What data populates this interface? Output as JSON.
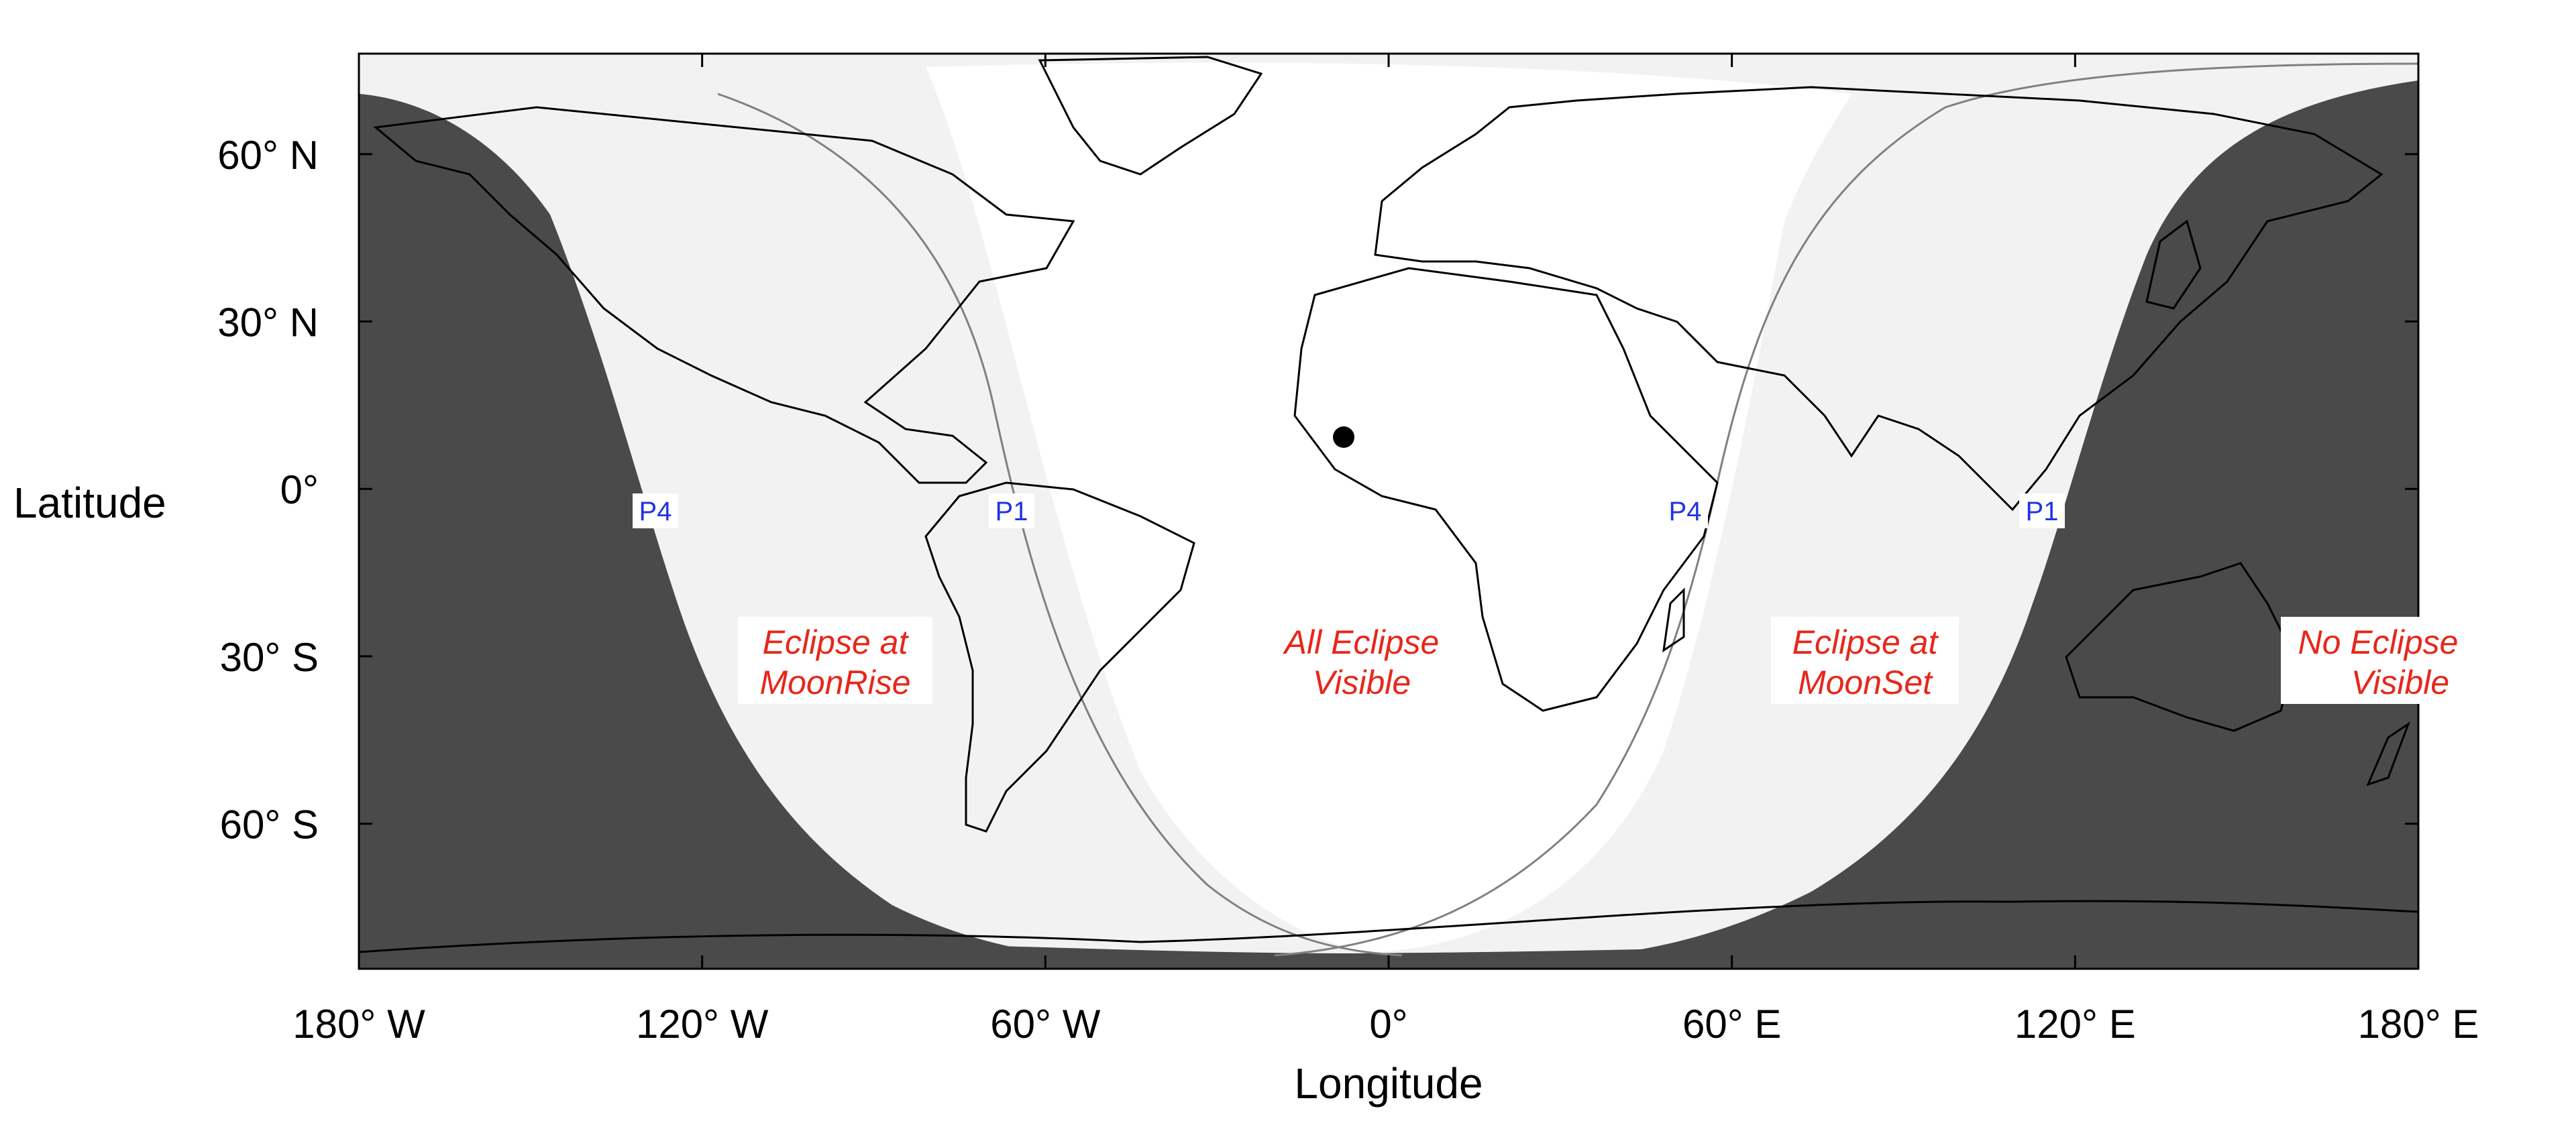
{
  "map": {
    "x_axis_title": "Longitude",
    "y_axis_title": "Latitude",
    "x_ticks": [
      {
        "lon": -180,
        "label": "180° W"
      },
      {
        "lon": -120,
        "label": "120° W"
      },
      {
        "lon": -60,
        "label": "60° W"
      },
      {
        "lon": 0,
        "label": "0°"
      },
      {
        "lon": 60,
        "label": "60° E"
      },
      {
        "lon": 120,
        "label": "120° E"
      },
      {
        "lon": 180,
        "label": "180° E"
      }
    ],
    "y_ticks": [
      {
        "lat": 60,
        "label": "60° N"
      },
      {
        "lat": 30,
        "label": "30° N"
      },
      {
        "lat": 0,
        "label": "0°"
      },
      {
        "lat": -30,
        "label": "30° S"
      },
      {
        "lat": -60,
        "label": "60° S"
      }
    ],
    "regions": [
      {
        "id": "moonrise",
        "line1": "Eclipse at",
        "line2": "MoonRise"
      },
      {
        "id": "all-visible",
        "line1": "All Eclipse",
        "line2": "Visible"
      },
      {
        "id": "moonset",
        "line1": "Eclipse at",
        "line2": "MoonSet"
      },
      {
        "id": "no-eclipse",
        "line1": "No Eclipse",
        "line2": "Visible"
      }
    ],
    "contact_labels": [
      {
        "id": "p4-west",
        "text": "P4"
      },
      {
        "id": "p1-west",
        "text": "P1"
      },
      {
        "id": "p4-east",
        "text": "P4"
      },
      {
        "id": "p1-east",
        "text": "P1"
      }
    ],
    "colors": {
      "night": "#4a4a4a",
      "partial": "#f2f2f2",
      "full": "#ffffff",
      "region_text": "#e8261a",
      "contact_text": "#2233dd"
    }
  }
}
